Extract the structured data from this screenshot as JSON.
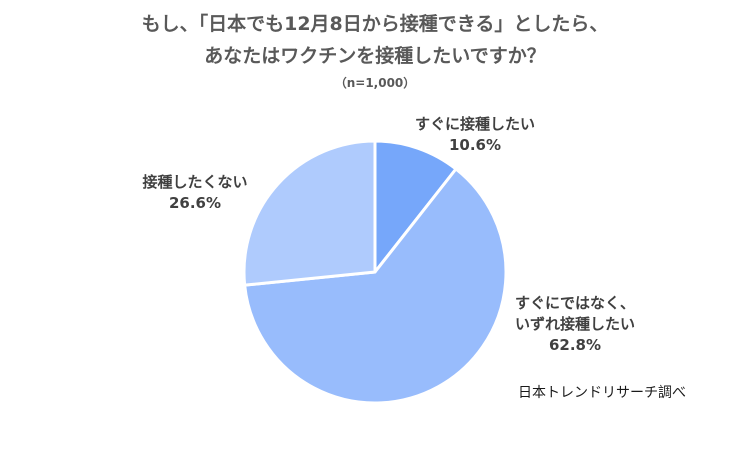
{
  "title_line1": "もし、「日本でも12月8日から接種できる」としたら、",
  "title_line2": "あなたはワクチンを接種したいですか？",
  "subtitle": "（n=1,000）",
  "source": "日本トレンドリサーチ調べ",
  "chart_data": {
    "type": "pie",
    "title": "もし、「日本でも12月8日から接種できる」としたら、あなたはワクチンを接種したいですか？",
    "unit": "%",
    "slices": [
      {
        "label": "すぐに接種したい",
        "label_lines": [
          "すぐに接種したい"
        ],
        "value": 10.6,
        "value_label": "10.6%",
        "color": "#76A7FA"
      },
      {
        "label": "すぐにではなく、いずれ接種したい",
        "label_lines": [
          "すぐにではなく、",
          "いずれ接種したい"
        ],
        "value": 62.8,
        "value_label": "62.8%",
        "color": "#98BCFC"
      },
      {
        "label": "接種したくない",
        "label_lines": [
          "接種したくない"
        ],
        "value": 26.6,
        "value_label": "26.6%",
        "color": "#AFCBFD"
      }
    ],
    "start_angle": "12 o'clock",
    "direction": "clockwise",
    "legend": "none"
  }
}
